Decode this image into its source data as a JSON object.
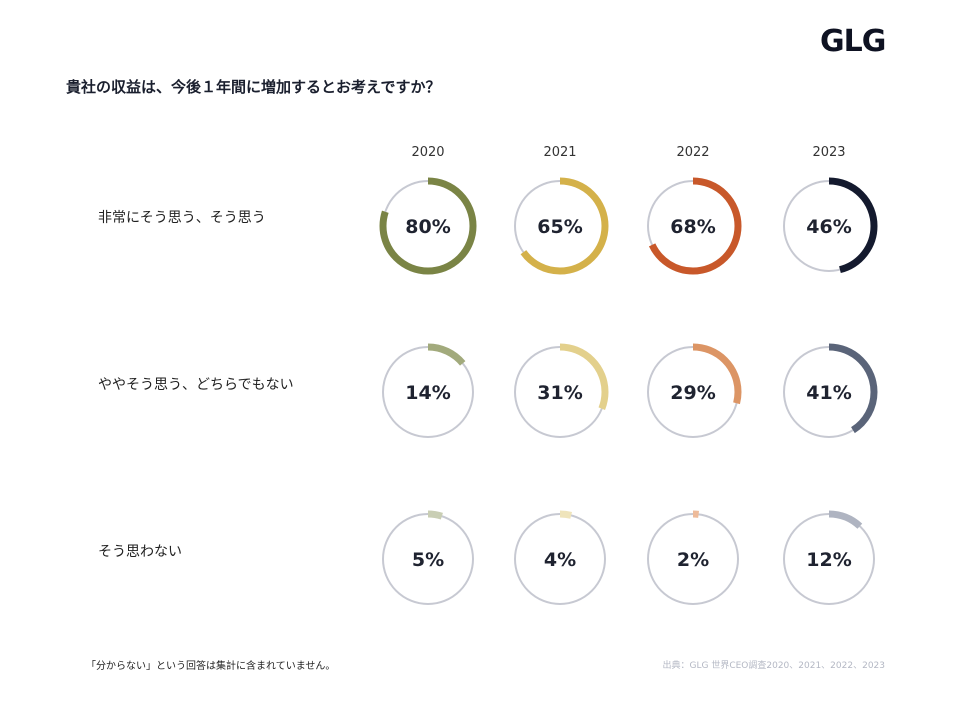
{
  "logo": "GLG",
  "question": "貴社の収益は、今後１年間に増加するとお考えですか？",
  "footnote": "「分からない」という回答は集計に含まれていません。",
  "source": "出典：GLG 世界CEO調査2020、2021、2022、2023",
  "track_color": "#c7c9d2",
  "chart_data": {
    "type": "donut-grid",
    "title": "貴社の収益は、今後１年間に増加するとお考えですか？",
    "years": [
      "2020",
      "2021",
      "2022",
      "2023"
    ],
    "series": [
      {
        "name": "非常にそう思う、そう思う",
        "values": [
          80,
          65,
          68,
          46
        ],
        "labels": [
          "80%",
          "65%",
          "68%",
          "46%"
        ],
        "colors": [
          "#7a8445",
          "#d4b14a",
          "#c8582a",
          "#141a2e"
        ]
      },
      {
        "name": "ややそう思う、どちらでもない",
        "values": [
          14,
          31,
          29,
          41
        ],
        "labels": [
          "14%",
          "31%",
          "29%",
          "41%"
        ],
        "colors": [
          "#a2aa7c",
          "#e3d08c",
          "#dc9565",
          "#5a6479"
        ]
      },
      {
        "name": "そう思わない",
        "values": [
          5,
          4,
          2,
          12
        ],
        "labels": [
          "5%",
          "4%",
          "2%",
          "12%"
        ],
        "colors": [
          "#c9ceb4",
          "#efe4bb",
          "#eebb9a",
          "#afb4c1"
        ]
      }
    ]
  }
}
